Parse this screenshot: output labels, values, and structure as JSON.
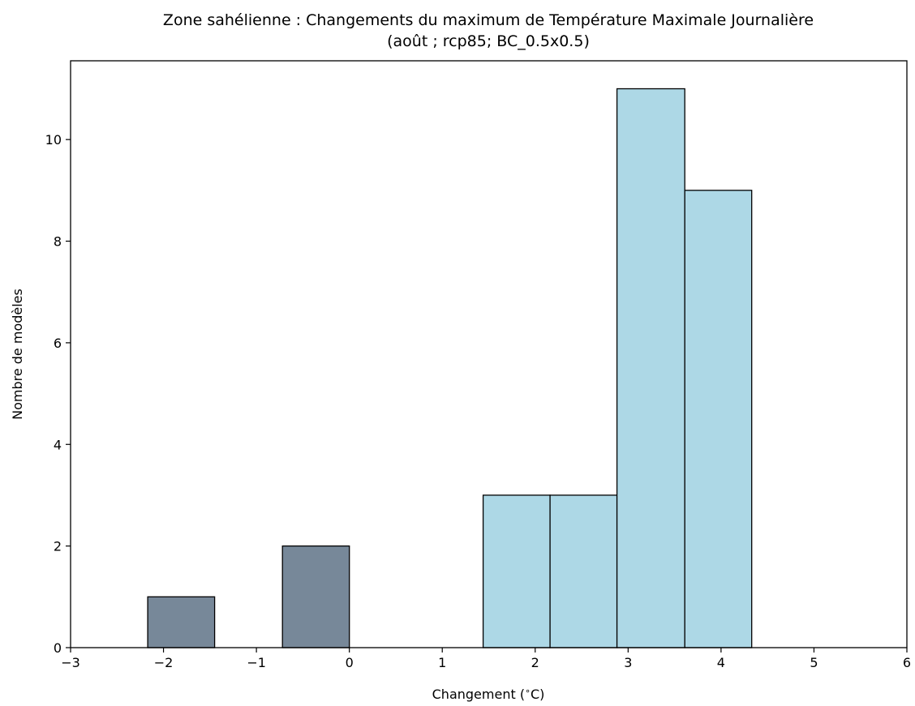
{
  "chart_data": {
    "type": "bar",
    "title": "Zone sahélienne : Changements du maximum de Température Maximale Journalière",
    "subtitle": "(août ; rcp85; BC_0.5x0.5)",
    "xlabel": "Changement ($^\\circ$C)",
    "ylabel": "Nombre de modèles",
    "xlim": [
      -3,
      6
    ],
    "ylim": [
      0,
      11.55
    ],
    "x_ticks": [
      -3,
      -2,
      -1,
      0,
      1,
      2,
      3,
      4,
      5,
      6
    ],
    "x_tick_labels": [
      "−3",
      "−2",
      "−1",
      "0",
      "1",
      "2",
      "3",
      "4",
      "5",
      "6"
    ],
    "y_ticks": [
      0,
      2,
      4,
      6,
      8,
      10
    ],
    "y_tick_labels": [
      "0",
      "2",
      "4",
      "6",
      "8",
      "10"
    ],
    "grid": false,
    "colors": {
      "negative": "#778899",
      "positive": "#add8e6",
      "edge": "#000000"
    },
    "bins": [
      {
        "x0": -2.17,
        "x1": -1.45,
        "count": 1,
        "group": "negative"
      },
      {
        "x0": -0.72,
        "x1": 0.0,
        "count": 2,
        "group": "negative"
      },
      {
        "x0": 1.44,
        "x1": 2.16,
        "count": 3,
        "group": "positive"
      },
      {
        "x0": 2.16,
        "x1": 2.88,
        "count": 3,
        "group": "positive"
      },
      {
        "x0": 2.88,
        "x1": 3.61,
        "count": 11,
        "group": "positive"
      },
      {
        "x0": 3.61,
        "x1": 4.33,
        "count": 9,
        "group": "positive"
      }
    ]
  }
}
